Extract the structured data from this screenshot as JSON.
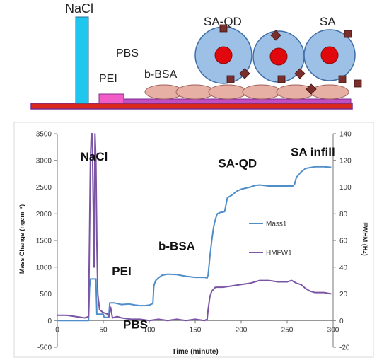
{
  "schematic": {
    "labels": {
      "nacl": "NaCl",
      "pbs": "PBS",
      "pei": "PEI",
      "bbsa": "b-BSA",
      "saqd": "SA-QD",
      "sa": "SA"
    },
    "colors": {
      "nacl": "#1fc7ef",
      "pei": "#f25cc7",
      "substrate": "#d9271c",
      "pei_layer": "#c04fc4",
      "bsa": "#e6b1a4",
      "qd_shell": "#9dc0e6",
      "qd_core": "#e0070d",
      "sa_marker": "#7a2f2c"
    }
  },
  "chart_data": {
    "type": "line",
    "xlabel": "Time (minute)",
    "ylabel": "Mass Change (ngcm⁻²)",
    "y2label": "FWHM (Hz)",
    "xlim": [
      0,
      300
    ],
    "ylim": [
      -500,
      3500
    ],
    "y2lim": [
      -20,
      140
    ],
    "xticks": [
      "0",
      "50",
      "100",
      "150",
      "200",
      "250",
      "300"
    ],
    "yticks": [
      "-500",
      "0",
      "500",
      "1000",
      "1500",
      "2000",
      "2500",
      "3000",
      "3500"
    ],
    "y2ticks": [
      "-20",
      "0",
      "20",
      "40",
      "60",
      "80",
      "100",
      "120",
      "140"
    ],
    "grid": false,
    "legend_position": "right",
    "series": [
      {
        "name": "Mass1",
        "axis": "left",
        "color": "#4f8ec9",
        "points": [
          [
            0,
            0
          ],
          [
            34,
            0
          ],
          [
            35,
            600
          ],
          [
            36,
            780
          ],
          [
            42,
            780
          ],
          [
            43,
            120
          ],
          [
            50,
            120
          ],
          [
            51,
            60
          ],
          [
            56,
            60
          ],
          [
            57,
            330
          ],
          [
            62,
            330
          ],
          [
            70,
            300
          ],
          [
            78,
            310
          ],
          [
            85,
            290
          ],
          [
            90,
            280
          ],
          [
            95,
            280
          ],
          [
            100,
            290
          ],
          [
            104,
            320
          ],
          [
            105,
            650
          ],
          [
            107,
            750
          ],
          [
            110,
            800
          ],
          [
            114,
            850
          ],
          [
            120,
            870
          ],
          [
            130,
            860
          ],
          [
            140,
            830
          ],
          [
            150,
            810
          ],
          [
            160,
            810
          ],
          [
            163,
            800
          ],
          [
            164,
            850
          ],
          [
            166,
            1200
          ],
          [
            168,
            1500
          ],
          [
            170,
            1750
          ],
          [
            172,
            1900
          ],
          [
            174,
            2000
          ],
          [
            178,
            2030
          ],
          [
            180,
            2030
          ],
          [
            182,
            2040
          ],
          [
            185,
            2300
          ],
          [
            190,
            2350
          ],
          [
            195,
            2420
          ],
          [
            200,
            2460
          ],
          [
            205,
            2480
          ],
          [
            210,
            2500
          ],
          [
            215,
            2530
          ],
          [
            220,
            2540
          ],
          [
            230,
            2520
          ],
          [
            240,
            2520
          ],
          [
            250,
            2520
          ],
          [
            256,
            2520
          ],
          [
            258,
            2550
          ],
          [
            260,
            2680
          ],
          [
            265,
            2780
          ],
          [
            270,
            2850
          ],
          [
            280,
            2880
          ],
          [
            290,
            2880
          ],
          [
            298,
            2870
          ]
        ]
      },
      {
        "name": "HMFW1",
        "axis": "right",
        "color": "#7a55a4",
        "points": [
          [
            0,
            4
          ],
          [
            10,
            4
          ],
          [
            20,
            3
          ],
          [
            30,
            2
          ],
          [
            34,
            3
          ],
          [
            35,
            60
          ],
          [
            36,
            120
          ],
          [
            37,
            140
          ],
          [
            38,
            140
          ],
          [
            39,
            90
          ],
          [
            40,
            40
          ],
          [
            41,
            140
          ],
          [
            42,
            120
          ],
          [
            43,
            60
          ],
          [
            44,
            20
          ],
          [
            46,
            8
          ],
          [
            50,
            6
          ],
          [
            54,
            5
          ],
          [
            56,
            3
          ],
          [
            58,
            10
          ],
          [
            60,
            2
          ],
          [
            65,
            3
          ],
          [
            70,
            2
          ],
          [
            80,
            1
          ],
          [
            90,
            1
          ],
          [
            100,
            0
          ],
          [
            110,
            1
          ],
          [
            120,
            0
          ],
          [
            130,
            1
          ],
          [
            140,
            0
          ],
          [
            150,
            1
          ],
          [
            160,
            0
          ],
          [
            163,
            1
          ],
          [
            164,
            8
          ],
          [
            166,
            18
          ],
          [
            168,
            22
          ],
          [
            172,
            25
          ],
          [
            180,
            25
          ],
          [
            190,
            26
          ],
          [
            200,
            27
          ],
          [
            210,
            28
          ],
          [
            220,
            30
          ],
          [
            230,
            30
          ],
          [
            240,
            29
          ],
          [
            250,
            29
          ],
          [
            255,
            30
          ],
          [
            260,
            28
          ],
          [
            265,
            27
          ],
          [
            270,
            24
          ],
          [
            275,
            22
          ],
          [
            280,
            21
          ],
          [
            290,
            21
          ],
          [
            298,
            20
          ]
        ]
      }
    ],
    "annotations": [
      {
        "text": "NaCl",
        "x": 40,
        "y": 3000
      },
      {
        "text": "PEI",
        "x": 70,
        "y": 850
      },
      {
        "text": "PBS",
        "x": 85,
        "y": -150
      },
      {
        "text": "b-BSA",
        "x": 130,
        "y": 1320
      },
      {
        "text": "SA-QD",
        "x": 196,
        "y": 2870
      },
      {
        "text": "SA infill",
        "x": 278,
        "y": 3080
      }
    ]
  }
}
